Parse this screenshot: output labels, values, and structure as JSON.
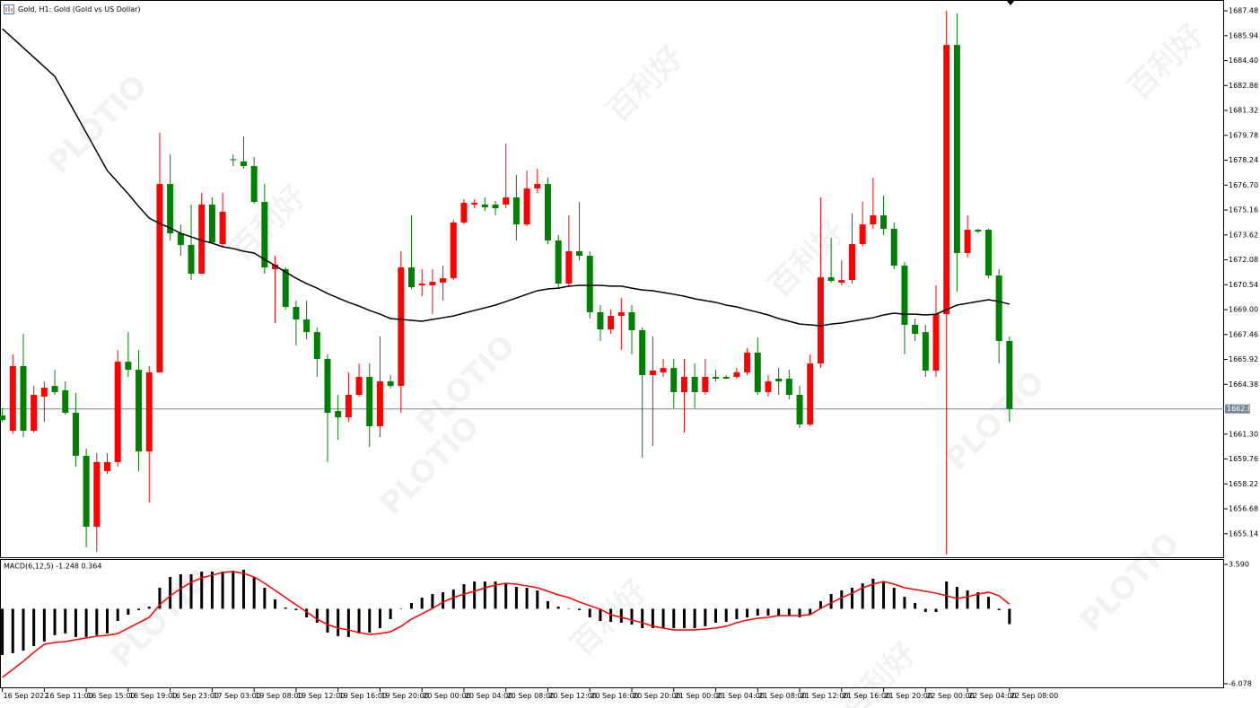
{
  "chart_data": [
    {
      "type": "candlestick",
      "title": "Gold, H1: Gold (Gold vs US Dollar)",
      "categories": [
        "16 Sep 2022",
        null,
        null,
        null,
        "16 Sep 11:00",
        null,
        null,
        null,
        "16 Sep 15:00",
        null,
        null,
        null,
        "16 Sep 19:00",
        null,
        null,
        null,
        "16 Sep 23:00",
        null,
        null,
        null,
        "17 Sep 03:00",
        null,
        null,
        null,
        "19 Sep 08:00",
        null,
        null,
        null,
        "19 Sep 12:00",
        null,
        null,
        null,
        "19 Sep 16:00",
        null,
        null,
        null,
        "19 Sep 20:00",
        null,
        null,
        null,
        "20 Sep 00:00",
        null,
        null,
        null,
        "20 Sep 04:00",
        null,
        null,
        null,
        "20 Sep 08:00",
        null,
        null,
        null,
        "20 Sep 12:00",
        null,
        null,
        null,
        "20 Sep 16:00",
        null,
        null,
        null,
        "20 Sep 20:00",
        null,
        null,
        null,
        "21 Sep 00:00",
        null,
        null,
        null,
        "21 Sep 04:00",
        null,
        null,
        null,
        "21 Sep 08:00",
        null,
        null,
        null,
        "21 Sep 12:00",
        null,
        null,
        null,
        "21 Sep 16:00",
        null,
        null,
        null,
        "21 Sep 20:00",
        null,
        null,
        null,
        "22 Sep 00:00",
        null,
        null,
        null,
        "22 Sep 04:00",
        null,
        null,
        null,
        "22 Sep 08:00"
      ],
      "open": [
        1662.45,
        1661.51,
        1665.51,
        1661.51,
        1663.62,
        1664.28,
        1664.01,
        1662.62,
        1659.96,
        1655.57,
        1659.01,
        1659.57,
        1665.78,
        1665.28,
        1660.23,
        1665.12,
        1676.77,
        1673.72,
        1673.0,
        1671.22,
        1675.5,
        1673.05,
        1678.3,
        1678.16,
        1677.88,
        1675.66,
        1671.5,
        1671.5,
        1669.17,
        1668.39,
        1667.61,
        1665.95,
        1662.73,
        1662.34,
        1663.73,
        1664.84,
        1661.79,
        1664.56,
        1664.28,
        1671.61,
        1670.5,
        1670.5,
        1670.67,
        1670.94,
        1674.39,
        1675.5,
        1675.5,
        1675.5,
        1675.5,
        1675.94,
        1674.27,
        1676.49,
        1676.77,
        1673.28,
        1670.61,
        1672.61,
        1672.33,
        1668.84,
        1667.78,
        1668.61,
        1668.84,
        1667.73,
        1664.95,
        1665.12,
        1665.39,
        1663.9,
        1664.84,
        1663.9,
        1664.84,
        1664.84,
        1664.84,
        1665.12,
        1666.34,
        1663.9,
        1664.73,
        1664.73,
        1663.73,
        1661.9,
        1665.67,
        1671.0,
        1670.67,
        1670.83,
        1673.05,
        1674.27,
        1674.83,
        1674.0,
        1671.72,
        1668.06,
        1667.61,
        1665.23,
        1668.72,
        1685.37,
        1672.5,
        1673.94,
        1673.94,
        1671.11,
        1667.06
      ],
      "high": [
        1662.9,
        1666.23,
        1667.5,
        1664.28,
        1664.56,
        1665.28,
        1664.56,
        1663.84,
        1660.4,
        1660.12,
        1660.12,
        1666.5,
        1667.61,
        1666.5,
        1665.51,
        1679.94,
        1678.6,
        1674.27,
        1675.5,
        1676.22,
        1675.94,
        1676.22,
        1678.6,
        1679.71,
        1678.44,
        1676.77,
        1672.33,
        1671.61,
        1669.56,
        1669.56,
        1667.89,
        1666.23,
        1663.73,
        1665.12,
        1665.67,
        1665.67,
        1667.34,
        1664.95,
        1672.61,
        1674.83,
        1671.5,
        1671.5,
        1671.72,
        1674.55,
        1675.83,
        1675.83,
        1675.94,
        1675.72,
        1679.27,
        1677.33,
        1677.6,
        1677.72,
        1677.16,
        1673.61,
        1674.83,
        1675.66,
        1672.61,
        1669.28,
        1669.0,
        1669.72,
        1669.28,
        1667.89,
        1667.34,
        1665.95,
        1665.95,
        1665.95,
        1665.67,
        1665.95,
        1665.28,
        1664.95,
        1665.39,
        1666.62,
        1667.28,
        1664.95,
        1665.39,
        1665.28,
        1664.28,
        1666.23,
        1675.94,
        1673.44,
        1672.05,
        1674.94,
        1675.66,
        1677.16,
        1676.05,
        1674.39,
        1671.94,
        1668.45,
        1668.06,
        1670.5,
        1687.48,
        1687.32,
        1674.83,
        1674.0,
        1674.0,
        1671.5,
        1667.34
      ],
      "low": [
        1662.06,
        1661.34,
        1661.12,
        1661.4,
        1662.06,
        1663.73,
        1662.51,
        1659.29,
        1654.29,
        1654.02,
        1658.85,
        1659.29,
        1664.84,
        1659.01,
        1657.07,
        1665.12,
        1673.28,
        1672.33,
        1670.83,
        1671.22,
        1673.05,
        1672.89,
        1677.88,
        1677.72,
        1675.55,
        1671.22,
        1668.17,
        1669.0,
        1666.78,
        1667.17,
        1664.84,
        1659.57,
        1660.95,
        1662.06,
        1663.62,
        1660.51,
        1661.12,
        1664.12,
        1662.62,
        1670.28,
        1669.83,
        1668.72,
        1669.56,
        1670.83,
        1674.27,
        1675.27,
        1675.11,
        1674.83,
        1675.27,
        1673.28,
        1674.16,
        1676.22,
        1673.05,
        1670.28,
        1670.39,
        1672.05,
        1668.45,
        1667.06,
        1667.5,
        1666.5,
        1666.23,
        1659.84,
        1660.57,
        1664.84,
        1662.9,
        1661.4,
        1662.9,
        1663.73,
        1664.56,
        1664.73,
        1664.73,
        1664.95,
        1663.73,
        1663.62,
        1663.73,
        1663.45,
        1661.68,
        1661.79,
        1665.39,
        1670.67,
        1670.5,
        1670.61,
        1672.89,
        1674.0,
        1673.61,
        1671.5,
        1666.23,
        1667.06,
        1664.84,
        1664.84,
        1653.85,
        1670.11,
        1672.22,
        1673.72,
        1670.94,
        1665.67,
        1662.06
      ],
      "close": [
        1662.18,
        1665.51,
        1661.51,
        1663.73,
        1664.17,
        1663.9,
        1662.62,
        1659.96,
        1655.57,
        1659.57,
        1659.57,
        1665.78,
        1665.28,
        1660.23,
        1665.12,
        1676.77,
        1673.72,
        1673.0,
        1671.22,
        1675.5,
        1673.16,
        1675.05,
        1678.27,
        1677.88,
        1675.66,
        1671.61,
        1671.78,
        1669.17,
        1668.39,
        1667.61,
        1665.95,
        1662.62,
        1662.34,
        1663.73,
        1664.84,
        1661.79,
        1664.56,
        1664.28,
        1671.61,
        1670.39,
        1670.61,
        1670.72,
        1670.94,
        1674.39,
        1675.61,
        1675.61,
        1675.33,
        1675.27,
        1675.94,
        1674.27,
        1676.49,
        1676.77,
        1673.28,
        1670.61,
        1672.61,
        1672.33,
        1668.84,
        1667.78,
        1668.61,
        1668.84,
        1667.73,
        1664.95,
        1665.23,
        1665.39,
        1663.9,
        1664.84,
        1663.9,
        1664.84,
        1664.73,
        1664.73,
        1665.12,
        1666.34,
        1663.9,
        1664.56,
        1664.56,
        1663.73,
        1661.9,
        1665.67,
        1671.0,
        1670.78,
        1670.83,
        1673.05,
        1674.27,
        1674.83,
        1674.0,
        1671.72,
        1668.06,
        1667.5,
        1665.23,
        1668.72,
        1685.37,
        1672.5,
        1673.94,
        1673.83,
        1671.11,
        1667.06,
        1662.86
      ],
      "up_color": "#ff0000",
      "down_color": "#008000",
      "overlay": {
        "color": "#000000",
        "values": [
          1686.37,
          1685.79,
          1685.2,
          1684.61,
          1684.02,
          1683.43,
          1682.27,
          1681.1,
          1679.94,
          1678.77,
          1677.6,
          1676.88,
          1676.16,
          1675.38,
          1674.66,
          1674.33,
          1674.05,
          1673.72,
          1673.5,
          1673.28,
          1673.11,
          1672.89,
          1672.78,
          1672.61,
          1672.5,
          1672.11,
          1671.72,
          1671.33,
          1670.94,
          1670.61,
          1670.33,
          1670.0,
          1669.72,
          1669.45,
          1669.22,
          1668.95,
          1668.72,
          1668.45,
          1668.39,
          1668.34,
          1668.28,
          1668.39,
          1668.5,
          1668.61,
          1668.78,
          1668.95,
          1669.11,
          1669.28,
          1669.5,
          1669.72,
          1669.95,
          1670.17,
          1670.28,
          1670.33,
          1670.45,
          1670.5,
          1670.5,
          1670.5,
          1670.45,
          1670.45,
          1670.33,
          1670.22,
          1670.17,
          1670.06,
          1669.95,
          1669.83,
          1669.67,
          1669.56,
          1669.45,
          1669.28,
          1669.17,
          1669.0,
          1668.84,
          1668.67,
          1668.45,
          1668.28,
          1668.11,
          1668.06,
          1668.0,
          1668.11,
          1668.17,
          1668.28,
          1668.39,
          1668.5,
          1668.67,
          1668.78,
          1668.72,
          1668.72,
          1668.67,
          1668.72,
          1669.0,
          1669.28,
          1669.39,
          1669.5,
          1669.61,
          1669.5,
          1669.34
        ]
      },
      "current_price": 1662.86,
      "ylim": [
        1653.63,
        1688.15
      ],
      "yticks": [
        1687.48,
        1685.94,
        {
          "value": 1684.4,
          "label": "1684.40"
        },
        1682.86,
        1681.32,
        1679.78,
        1678.24,
        {
          "value": 1676.7,
          "label": "1676.70"
        },
        1675.16,
        1673.62,
        1672.08,
        1670.54,
        {
          "value": 1669,
          "label": "1669.00"
        },
        1667.46,
        1665.92,
        1664.38,
        {
          "value": 1661.3,
          "label": "1661.30"
        },
        1659.76,
        1658.22,
        1656.68,
        1655.14
      ]
    },
    {
      "type": "macd",
      "title": "MACD(6,12,5) -1.248 0.364",
      "histogram": {
        "color": "#000000",
        "values": [
          -3.75,
          -3.6,
          -3.39,
          -3.02,
          -2.65,
          -2.14,
          -2.0,
          -2.29,
          -2.29,
          -2.14,
          -2.0,
          -0.99,
          -0.48,
          -0.12,
          0.17,
          1.7,
          2.57,
          2.79,
          2.79,
          3.01,
          3.01,
          3.01,
          3.08,
          3.15,
          2.57,
          1.7,
          0.76,
          0.1,
          -0.12,
          -0.7,
          -1.13,
          -1.93,
          -2.22,
          -2.29,
          -2.0,
          -1.93,
          -1.57,
          -0.84,
          0.03,
          0.47,
          0.9,
          1.19,
          1.34,
          1.56,
          1.99,
          2.21,
          2.21,
          2.21,
          2.06,
          1.77,
          1.7,
          1.48,
          0.61,
          0.17,
          0.03,
          -0.12,
          -0.7,
          -0.99,
          -1.06,
          -1.13,
          -1.28,
          -1.57,
          -1.57,
          -1.57,
          -1.57,
          -1.57,
          -1.57,
          -1.42,
          -1.13,
          -1.06,
          -0.84,
          -0.7,
          -0.55,
          -0.55,
          -0.55,
          -0.55,
          -0.7,
          -0.48,
          0.61,
          1.19,
          1.48,
          1.7,
          2.06,
          2.43,
          2.21,
          1.7,
          0.97,
          0.47,
          -0.26,
          -0.26,
          2.21,
          1.77,
          1.48,
          1.34,
          0.97,
          -0.12,
          -1.248
        ]
      },
      "signal": {
        "color": "#ff0000",
        "values": [
          -5.57,
          -4.91,
          -4.26,
          -3.53,
          -2.88,
          -2.73,
          -2.66,
          -2.51,
          -2.37,
          -2.22,
          -2.15,
          -2.01,
          -1.57,
          -1.13,
          -0.7,
          0.32,
          1.05,
          1.63,
          2.14,
          2.5,
          2.72,
          2.94,
          3.01,
          2.86,
          2.57,
          2.06,
          1.48,
          0.9,
          0.32,
          -0.26,
          -0.84,
          -1.28,
          -1.57,
          -1.72,
          -1.93,
          -2.08,
          -2.01,
          -1.86,
          -1.42,
          -0.84,
          -0.41,
          0.03,
          0.54,
          0.9,
          1.19,
          1.41,
          1.7,
          1.92,
          2.06,
          1.99,
          1.85,
          1.7,
          1.41,
          1.12,
          0.9,
          0.54,
          0.25,
          -0.04,
          -0.48,
          -0.7,
          -0.92,
          -1.13,
          -1.42,
          -1.57,
          -1.72,
          -1.72,
          -1.72,
          -1.64,
          -1.57,
          -1.42,
          -1.13,
          -0.92,
          -0.77,
          -0.7,
          -0.55,
          -0.55,
          -0.55,
          -0.48,
          0.03,
          0.47,
          0.9,
          1.26,
          1.7,
          1.99,
          2.21,
          1.99,
          1.7,
          1.56,
          1.41,
          1.26,
          1.05,
          0.83,
          0.97,
          1.19,
          1.34,
          1.05,
          0.364
        ]
      },
      "ylim": [
        -6.441,
        3.953
      ],
      "yticks": [
        {
          "value": 3.59,
          "label": "3.590"
        },
        -6.078
      ]
    }
  ],
  "watermark": {
    "brand": "PLOTIO",
    "chinese": "百利好"
  }
}
